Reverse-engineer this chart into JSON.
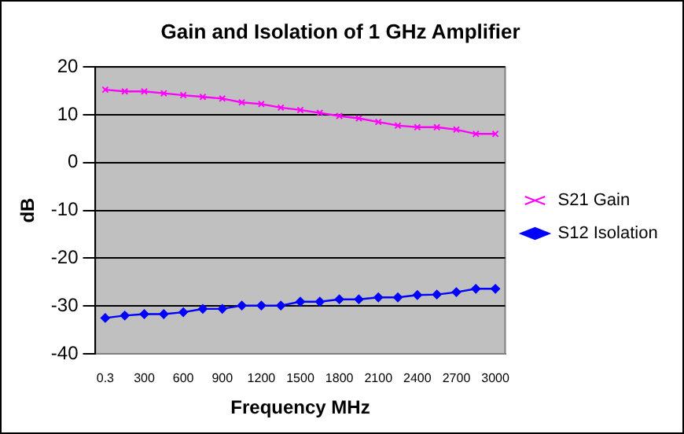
{
  "chart_data": {
    "type": "line",
    "title": "Gain and Isolation of 1 GHz Amplifier",
    "xlabel": "Frequency MHz",
    "ylabel": "dB",
    "categories": [
      "0.3",
      null,
      "300",
      null,
      "600",
      null,
      "900",
      null,
      "1200",
      null,
      "1500",
      null,
      "1800",
      null,
      "2100",
      null,
      "2400",
      null,
      "2700",
      null,
      "3000"
    ],
    "series": [
      {
        "name": "S21 Gain",
        "color": "#ff00ff",
        "marker": "cross",
        "values": [
          15.25,
          14.9,
          14.9,
          14.5,
          14.1,
          13.75,
          13.4,
          12.6,
          12.25,
          11.5,
          11,
          10.4,
          9.75,
          9.25,
          8.5,
          7.75,
          7.4,
          7.4,
          6.9,
          6.0,
          6.0
        ]
      },
      {
        "name": "S12 Isolation",
        "color": "#0000ff",
        "marker": "diamond",
        "values": [
          -32.5,
          -32,
          -31.7,
          -31.7,
          -31.3,
          -30.6,
          -30.6,
          -29.9,
          -29.9,
          -29.9,
          -29.1,
          -29.1,
          -28.6,
          -28.6,
          -28.2,
          -28.2,
          -27.7,
          -27.6,
          -27.1,
          -26.4,
          -26.4
        ]
      }
    ],
    "ylim": [
      -40,
      20
    ],
    "yticks": [
      -40,
      -30,
      -20,
      -10,
      0,
      10,
      20
    ],
    "grid": "y",
    "legend": "right"
  }
}
